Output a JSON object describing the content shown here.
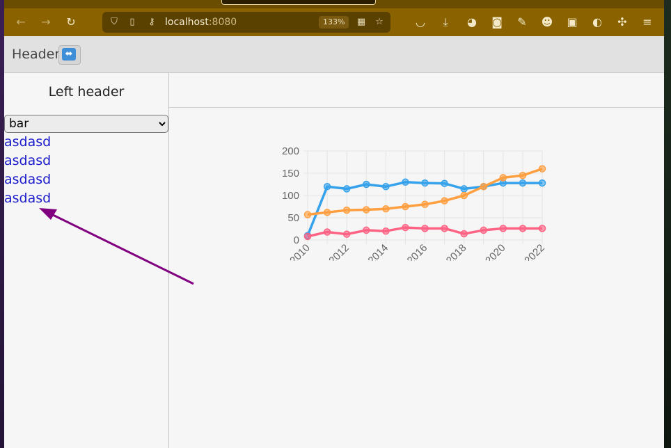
{
  "browser": {
    "url_host": "localhost",
    "url_port": ":8080",
    "zoom": "133%"
  },
  "header": {
    "title": "Header",
    "swap_icon": "⬌"
  },
  "left": {
    "title": "Left header",
    "select_value": "bar",
    "links": [
      "asdasd",
      "asdasd",
      "asdasd",
      "asdasd"
    ]
  },
  "colors": {
    "series_blue": "#36a2eb",
    "series_orange": "#ff9f40",
    "series_pink": "#ff6384",
    "link": "#1b1bcc",
    "arrow": "#800080"
  },
  "chart_data": {
    "type": "line",
    "x": [
      2010,
      2011,
      2012,
      2013,
      2014,
      2015,
      2016,
      2017,
      2018,
      2019,
      2020,
      2021,
      2022
    ],
    "x_tick_labels": [
      "2010",
      "2012",
      "2014",
      "2016",
      "2018",
      "2020",
      "2022"
    ],
    "y_tick_labels": [
      "0",
      "50",
      "100",
      "150",
      "200"
    ],
    "ylim": [
      0,
      200
    ],
    "grid": true,
    "series": [
      {
        "color": "#36a2eb",
        "values": [
          10,
          120,
          115,
          125,
          120,
          130,
          128,
          127,
          115,
          120,
          128,
          128,
          128
        ]
      },
      {
        "color": "#ff9f40",
        "values": [
          57,
          62,
          67,
          68,
          70,
          75,
          80,
          88,
          100,
          120,
          140,
          145,
          160
        ]
      },
      {
        "color": "#ff6384",
        "values": [
          8,
          18,
          13,
          22,
          20,
          28,
          26,
          26,
          14,
          22,
          26,
          26,
          26
        ]
      }
    ]
  }
}
